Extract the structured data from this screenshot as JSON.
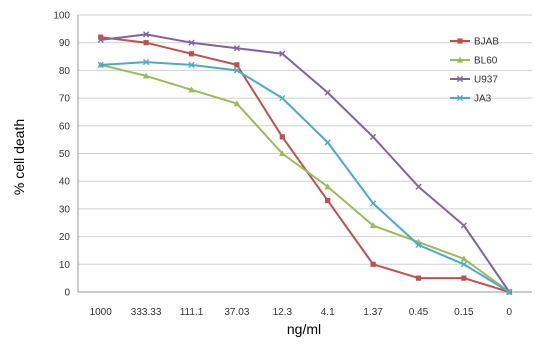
{
  "chart_data": {
    "type": "line",
    "title": "",
    "xlabel": "ng/ml",
    "ylabel": "% cell death",
    "ylim": [
      0,
      100
    ],
    "yticks": [
      0,
      10,
      20,
      30,
      40,
      50,
      60,
      70,
      80,
      90,
      100
    ],
    "grid": true,
    "legend_position": "right",
    "categories": [
      "1000",
      "333.33",
      "111.1",
      "37.03",
      "12.3",
      "4.1",
      "1.37",
      "0.45",
      "0.15",
      "0"
    ],
    "series": [
      {
        "name": "BJAB",
        "color": "#c0504d",
        "marker": "square",
        "values": [
          92,
          90,
          86,
          82,
          56,
          33,
          10,
          5,
          5,
          0
        ]
      },
      {
        "name": "BL60",
        "color": "#9bbb59",
        "marker": "triangle",
        "values": [
          82,
          78,
          73,
          68,
          50,
          38,
          24,
          18,
          12,
          0
        ]
      },
      {
        "name": "U937",
        "color": "#8064a2",
        "marker": "x",
        "values": [
          91,
          93,
          90,
          88,
          86,
          72,
          56,
          38,
          24,
          0
        ]
      },
      {
        "name": "JA3",
        "color": "#4bacc6",
        "marker": "x",
        "values": [
          82,
          83,
          82,
          80,
          70,
          54,
          32,
          17,
          10,
          0
        ]
      }
    ]
  }
}
